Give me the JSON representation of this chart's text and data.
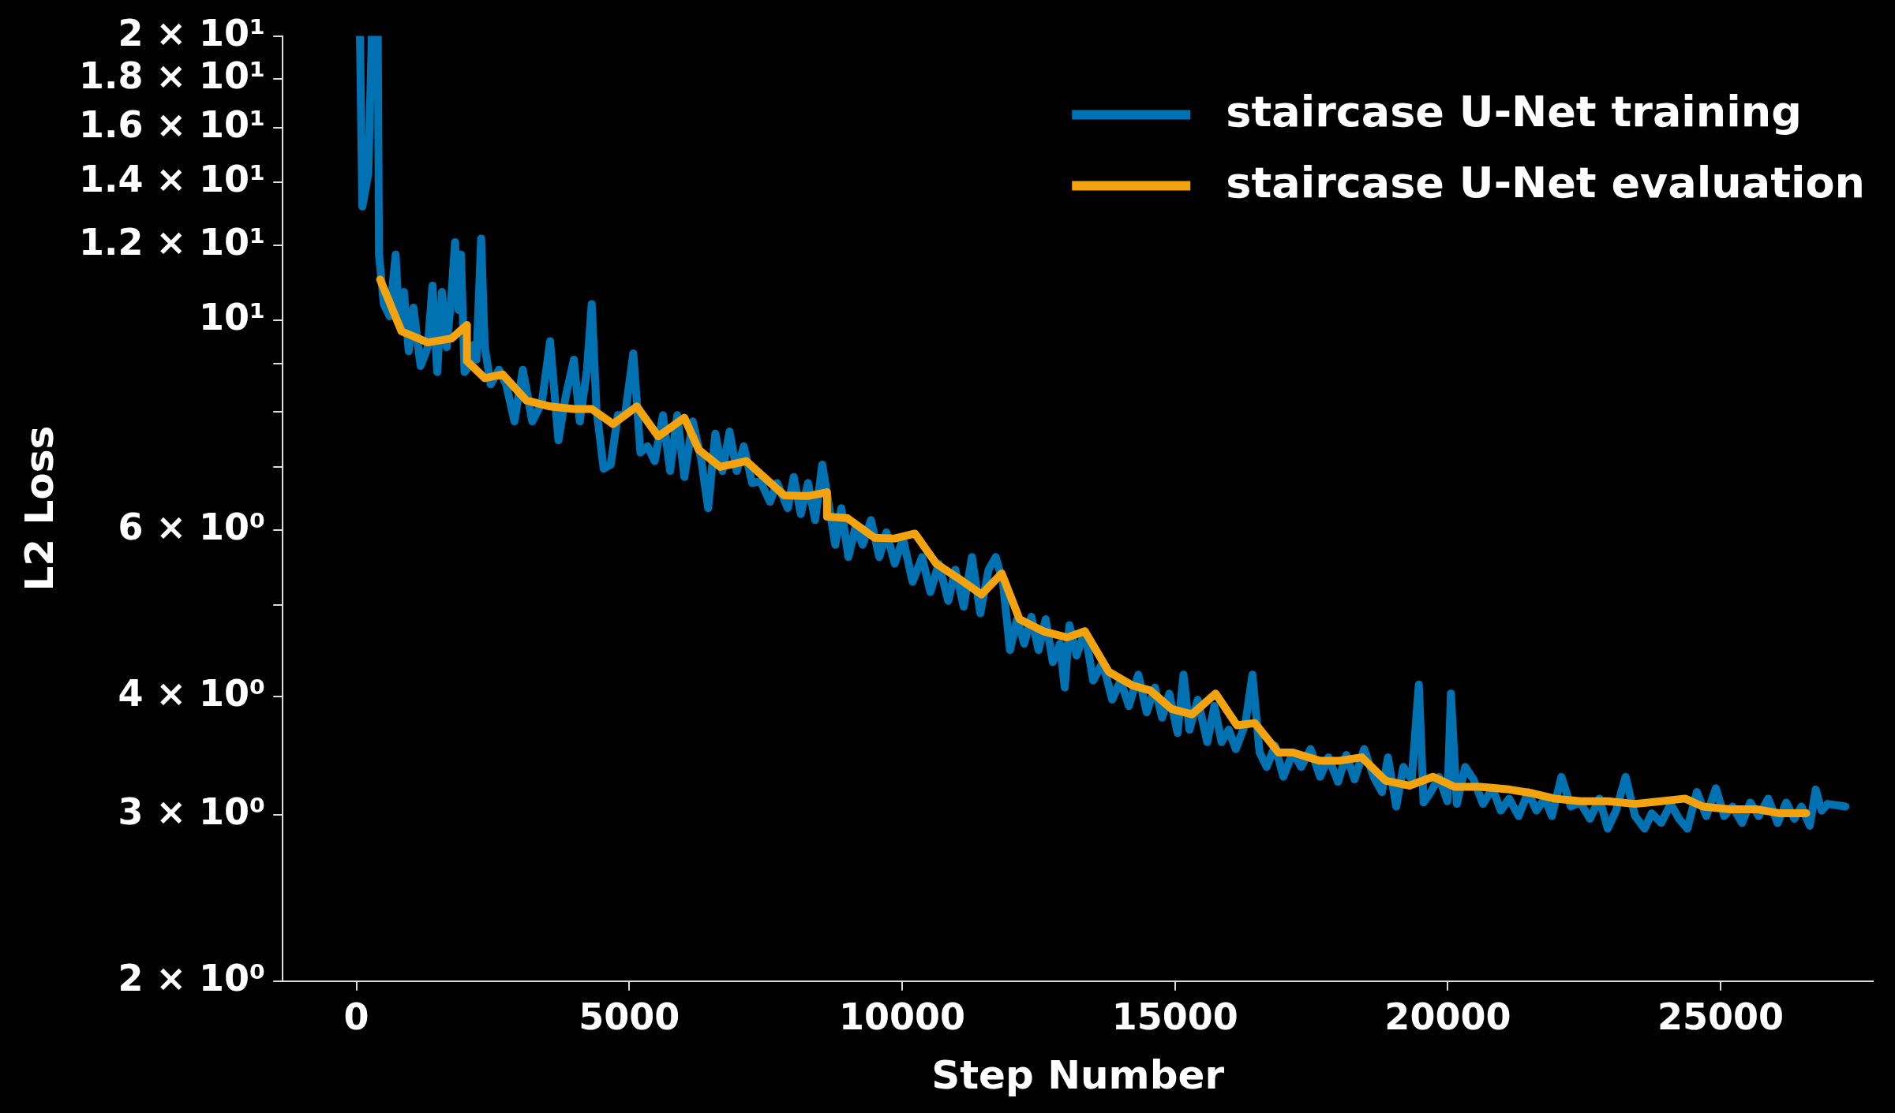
{
  "chart_data": {
    "type": "line",
    "xlabel": "Step Number",
    "ylabel": "L2 Loss",
    "log": "y",
    "grid": false,
    "legend": "top right",
    "xlim": [
      -1350,
      27790
    ],
    "xticks": [
      0,
      5000,
      10000,
      15000,
      20000,
      25000
    ],
    "ylim": [
      2,
      20
    ],
    "yticks": [
      {
        "value": 2,
        "label": "2 × 10⁰"
      },
      {
        "value": 3,
        "label": "3 × 10⁰"
      },
      {
        "value": 4,
        "label": "4 × 10⁰"
      },
      {
        "value": 5,
        "label": null
      },
      {
        "value": 6,
        "label": "6 × 10⁰"
      },
      {
        "value": 7,
        "label": null
      },
      {
        "value": 8,
        "label": null
      },
      {
        "value": 9,
        "label": null
      },
      {
        "value": 10,
        "label": "10¹"
      },
      {
        "value": 12,
        "label": "1.2 × 10¹"
      },
      {
        "value": 14,
        "label": "1.4 × 10¹"
      },
      {
        "value": 16,
        "label": "1.6 × 10¹"
      },
      {
        "value": 18,
        "label": "1.8 × 10¹"
      },
      {
        "value": 20,
        "label": "2 × 10¹"
      }
    ],
    "series": [
      {
        "name": "staircase U-Net training",
        "color": "#0072b2",
        "x": [
          65,
          109,
          218,
          283,
          392,
          414,
          501,
          610,
          719,
          784,
          871,
          958,
          1045,
          1176,
          1307,
          1394,
          1481,
          1568,
          1655,
          1742,
          1807,
          1873,
          1916,
          1981,
          2068,
          2134,
          2199,
          2286,
          2352,
          2461,
          2613,
          2744,
          2896,
          3049,
          3223,
          3397,
          3550,
          3702,
          3833,
          3985,
          4094,
          4225,
          4312,
          4399,
          4530,
          4660,
          4791,
          4922,
          5074,
          5205,
          5336,
          5466,
          5618,
          5749,
          5880,
          6010,
          6163,
          6315,
          6446,
          6577,
          6707,
          6838,
          6969,
          7099,
          7252,
          7404,
          7578,
          7709,
          7905,
          8014,
          8144,
          8275,
          8406,
          8537,
          8667,
          8776,
          8885,
          9016,
          9146,
          9277,
          9430,
          9582,
          9713,
          9865,
          10017,
          10192,
          10366,
          10518,
          10671,
          10845,
          10976,
          11128,
          11280,
          11433,
          11585,
          11716,
          11847,
          11977,
          12108,
          12238,
          12369,
          12500,
          12631,
          12761,
          12892,
          12979,
          13066,
          13197,
          13350,
          13502,
          13676,
          13850,
          14003,
          14155,
          14329,
          14482,
          14634,
          14765,
          14896,
          15048,
          15157,
          15266,
          15418,
          15592,
          15723,
          15854,
          15985,
          16115,
          16289,
          16420,
          16551,
          16681,
          16834,
          16986,
          17160,
          17312,
          17486,
          17661,
          17813,
          17988,
          18140,
          18292,
          18467,
          18641,
          18793,
          18903,
          19055,
          19185,
          19339,
          19469,
          19556,
          19687,
          19839,
          19991,
          20057,
          20166,
          20318,
          20470,
          20645,
          20819,
          20971,
          21124,
          21298,
          21472,
          21624,
          21777,
          21908,
          22082,
          22256,
          22430,
          22604,
          22778,
          22931,
          23083,
          23258,
          23432,
          23606,
          23736,
          23911,
          24085,
          24237,
          24390,
          24564,
          24738,
          24913,
          25065,
          25218,
          25392,
          25544,
          25697,
          25871,
          26045,
          26202,
          26350,
          26481,
          26633,
          26742,
          26851,
          26960,
          27287
        ],
        "values": [
          20,
          13.2,
          14.3,
          20,
          20,
          11.74,
          10.41,
          10.1,
          11.74,
          9.95,
          10.72,
          9.28,
          10.32,
          8.95,
          9.37,
          10.89,
          8.82,
          10.72,
          9.37,
          10.63,
          12.1,
          10.26,
          11.74,
          8.82,
          8.95,
          9.42,
          9.09,
          12.21,
          9.37,
          8.56,
          8.87,
          8.56,
          7.82,
          8.87,
          7.82,
          8.18,
          9.51,
          7.47,
          8.3,
          9.09,
          7.82,
          8.87,
          10.41,
          8.06,
          6.97,
          7.04,
          7.94,
          7.94,
          9.23,
          7.25,
          7.36,
          7.1,
          7.94,
          6.93,
          7.94,
          6.83,
          7.82,
          7.15,
          6.33,
          7.59,
          6.93,
          7.63,
          6.93,
          7.36,
          6.73,
          6.76,
          6.43,
          6.73,
          6.33,
          6.83,
          6.24,
          6.73,
          6.15,
          7.04,
          6.33,
          5.79,
          6.33,
          5.62,
          6.05,
          5.79,
          6.15,
          5.62,
          5.97,
          5.53,
          5.88,
          5.29,
          5.62,
          5.16,
          5.53,
          5.05,
          5.45,
          4.98,
          5.62,
          4.9,
          5.45,
          5.62,
          5.29,
          4.48,
          4.83,
          4.55,
          4.86,
          4.48,
          4.83,
          4.35,
          4.55,
          4.09,
          4.76,
          4.42,
          4.69,
          4.16,
          4.35,
          3.97,
          4.16,
          3.91,
          4.22,
          3.85,
          4.09,
          3.8,
          4.03,
          3.66,
          4.22,
          3.69,
          3.97,
          3.58,
          3.91,
          3.58,
          3.69,
          3.52,
          3.74,
          4.22,
          3.49,
          3.37,
          3.55,
          3.29,
          3.49,
          3.37,
          3.52,
          3.29,
          3.45,
          3.25,
          3.47,
          3.27,
          3.52,
          3.29,
          3.17,
          3.45,
          3.06,
          3.37,
          3.27,
          4.12,
          3.09,
          3.17,
          3.29,
          3.1,
          4.03,
          3.08,
          3.37,
          3.27,
          3.08,
          3.2,
          3.03,
          3.12,
          2.99,
          3.17,
          3.03,
          3.12,
          2.99,
          3.29,
          3.06,
          3.09,
          2.97,
          3.12,
          2.9,
          3.03,
          3.29,
          2.99,
          2.9,
          3.01,
          2.94,
          3.08,
          2.97,
          2.9,
          3.17,
          2.99,
          3.2,
          2.99,
          3.06,
          2.94,
          3.09,
          2.99,
          3.12,
          2.94,
          3.09,
          2.97,
          3.06,
          2.92,
          3.19,
          3.03,
          3.08,
          3.06
        ]
      },
      {
        "name": "staircase U-Net evaluation",
        "color": "#f2a30f",
        "x": [
          435,
          827,
          1307,
          1742,
          2025,
          2025,
          2352,
          2679,
          3114,
          3550,
          3985,
          4312,
          4704,
          5139,
          5531,
          6010,
          6272,
          6664,
          7143,
          7840,
          8275,
          8624,
          8624,
          8994,
          9495,
          9865,
          10235,
          10627,
          11063,
          11455,
          11825,
          12152,
          12587,
          13023,
          13350,
          13786,
          14221,
          14548,
          14940,
          15310,
          15745,
          16137,
          16463,
          16899,
          17160,
          17661,
          17988,
          18424,
          18859,
          19295,
          19730,
          20122,
          20601,
          21124,
          21559,
          21951,
          22430,
          22931,
          23432,
          23911,
          24347,
          24673,
          25174,
          25653,
          26089,
          26568
        ],
        "values": [
          11.05,
          9.74,
          9.48,
          9.57,
          9.89,
          9.06,
          8.69,
          8.77,
          8.23,
          8.11,
          8.06,
          8.06,
          7.77,
          8.11,
          7.54,
          7.89,
          7.3,
          7,
          7.1,
          6.53,
          6.52,
          6.58,
          6.2,
          6.18,
          5.89,
          5.88,
          5.95,
          5.53,
          5.32,
          5.13,
          5.4,
          4.83,
          4.69,
          4.62,
          4.69,
          4.25,
          4.11,
          4.06,
          3.88,
          3.83,
          4.03,
          3.73,
          3.75,
          3.49,
          3.49,
          3.42,
          3.42,
          3.45,
          3.26,
          3.22,
          3.29,
          3.21,
          3.21,
          3.19,
          3.16,
          3.12,
          3.1,
          3.1,
          3.08,
          3.1,
          3.12,
          3.06,
          3.04,
          3.04,
          3.01,
          3.01
        ]
      }
    ]
  }
}
